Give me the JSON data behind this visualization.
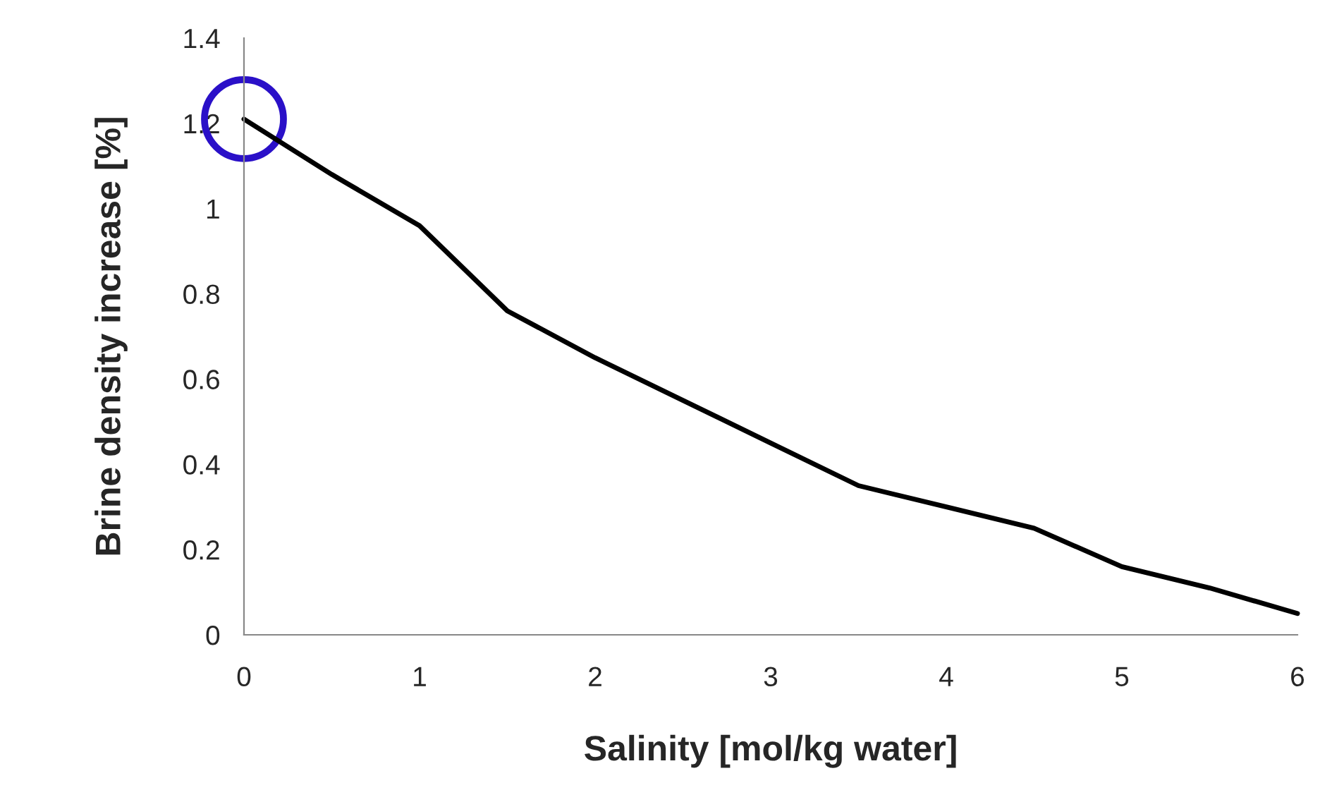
{
  "chart_data": {
    "type": "line",
    "xlabel": "Salinity [mol/kg water]",
    "ylabel": "Brine density increase [%]",
    "x": [
      0,
      0.5,
      1,
      1.5,
      2,
      2.5,
      3,
      3.5,
      4,
      4.5,
      5,
      5.5,
      6
    ],
    "series": [
      {
        "color": "#000000",
        "values": [
          1.21,
          1.08,
          0.96,
          0.76,
          0.65,
          0.55,
          0.45,
          0.35,
          0.3,
          0.25,
          0.16,
          0.11,
          0.05
        ]
      }
    ],
    "xlim": [
      0,
      6
    ],
    "xticks": [
      0,
      1,
      2,
      3,
      4,
      5,
      6
    ],
    "ylim": [
      0,
      1.4
    ],
    "yticks": [
      0,
      0.2,
      0.4,
      0.6,
      0.8,
      1,
      1.2,
      1.4
    ],
    "grid": false,
    "legend": false,
    "marker": "none",
    "line_style": "solid"
  }
}
